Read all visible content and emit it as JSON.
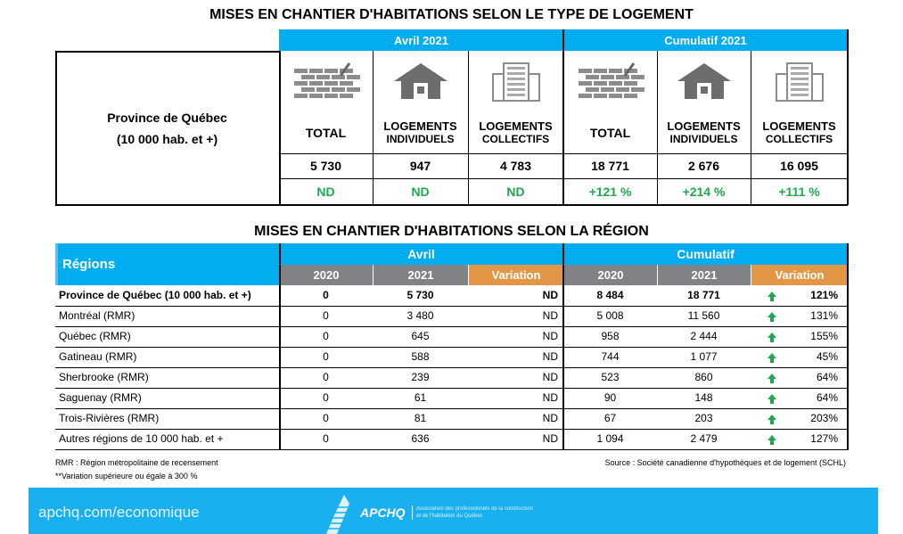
{
  "title1": "MISES EN CHANTIER D'HABITATIONS SELON LE TYPE DE LOGEMENT",
  "top": {
    "period1": "Avril 2021",
    "period2": "Cumulatif 2021",
    "region_line1": "Province de Québec",
    "region_line2": "(10 000 hab. et +)",
    "columns": [
      {
        "l1": "TOTAL",
        "l2": "",
        "icon": "brick-wall-icon",
        "value": "5 730",
        "var": "ND"
      },
      {
        "l1": "LOGEMENTS",
        "l2": "INDIVIDUELS",
        "icon": "house-icon",
        "value": "947",
        "var": "ND"
      },
      {
        "l1": "LOGEMENTS",
        "l2": "COLLECTIFS",
        "icon": "building-icon",
        "value": "4 783",
        "var": "ND"
      },
      {
        "l1": "TOTAL",
        "l2": "",
        "icon": "brick-wall-icon",
        "value": "18 771",
        "var": "+121 %"
      },
      {
        "l1": "LOGEMENTS",
        "l2": "INDIVIDUELS",
        "icon": "house-icon",
        "value": "2 676",
        "var": "+214 %"
      },
      {
        "l1": "LOGEMENTS",
        "l2": "COLLECTIFS",
        "icon": "building-icon",
        "value": "16 095",
        "var": "+111 %"
      }
    ]
  },
  "title2": "MISES EN CHANTIER D'HABITATIONS SELON LA RÉGION",
  "bottom": {
    "regions_label": "Régions",
    "period1": "Avril",
    "period2": "Cumulatif",
    "sub": [
      "2020",
      "2021",
      "Variation",
      "2020",
      "2021",
      "Variation"
    ],
    "rows": [
      [
        "Province de Québec (10 000 hab. et +)",
        "0",
        "5 730",
        "ND",
        "8 484",
        "18 771",
        "121%"
      ],
      [
        "Montréal (RMR)",
        "0",
        "3 480",
        "ND",
        "5 008",
        "11 560",
        "131%"
      ],
      [
        "Québec (RMR)",
        "0",
        "645",
        "ND",
        "958",
        "2 444",
        "155%"
      ],
      [
        "Gatineau (RMR)",
        "0",
        "588",
        "ND",
        "744",
        "1 077",
        "45%"
      ],
      [
        "Sherbrooke (RMR)",
        "0",
        "239",
        "ND",
        "523",
        "860",
        "64%"
      ],
      [
        "Saguenay (RMR)",
        "0",
        "61",
        "ND",
        "90",
        "148",
        "64%"
      ],
      [
        "Trois-Rivières (RMR)",
        "0",
        "81",
        "ND",
        "67",
        "203",
        "203%"
      ],
      [
        "Autres régions de 10 000  hab. et +",
        "0",
        "636",
        "ND",
        "1 094",
        "2 479",
        "127%"
      ]
    ]
  },
  "notes": {
    "rmr": "RMR : Région métropolitaine de recensement",
    "variation": "**Variation supérieure ou égale à 300 %",
    "source": "Source : Société canadienne d'hypothèques et de logement (SCHL)"
  },
  "footer": {
    "url": "apchq.com/economique",
    "logo": "APCHQ",
    "org1": "Association des professionnels de la construction",
    "org2": "et de l'habitation du Québec"
  }
}
